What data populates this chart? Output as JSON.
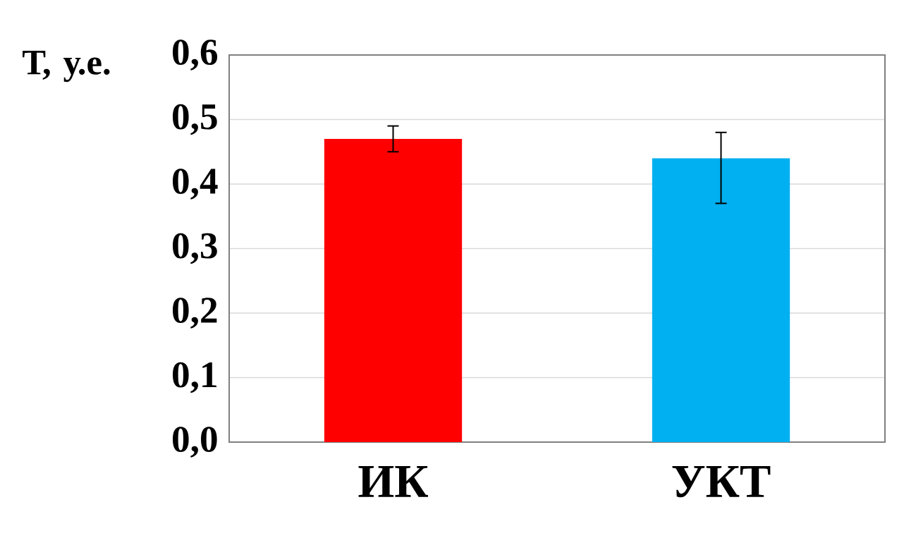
{
  "chart_data": {
    "type": "bar",
    "ylabel": "Т, у.е.",
    "categories": [
      "ИК",
      "УКТ"
    ],
    "values": [
      0.47,
      0.44
    ],
    "colors": [
      "#ff0000",
      "#00b0f0"
    ],
    "errors": [
      [
        0.45,
        0.49
      ],
      [
        0.37,
        0.48
      ]
    ],
    "ylim": [
      0,
      0.6
    ],
    "yticks": [
      {
        "value": 0,
        "label": "0,0"
      },
      {
        "value": 0.1,
        "label": "0,1"
      },
      {
        "value": 0.2,
        "label": "0,2"
      },
      {
        "value": 0.3,
        "label": "0,3"
      },
      {
        "value": 0.4,
        "label": "0,4"
      },
      {
        "value": 0.5,
        "label": "0,5"
      },
      {
        "value": 0.6,
        "label": "0,6"
      }
    ],
    "grid": "y"
  }
}
